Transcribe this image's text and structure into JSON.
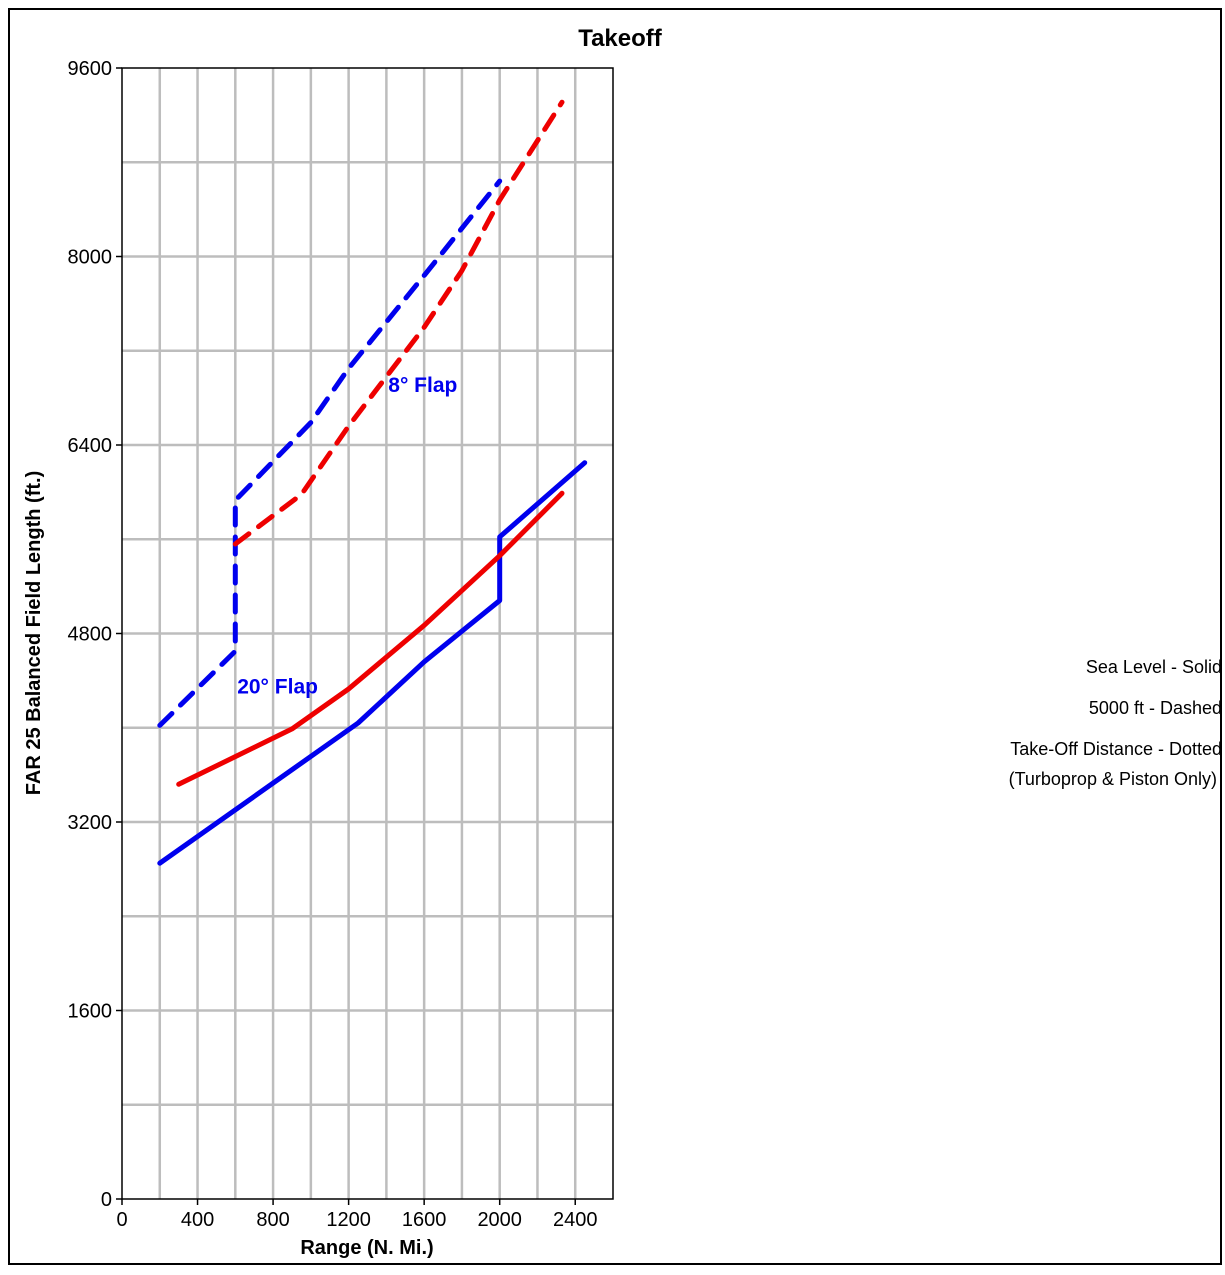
{
  "chart_data": {
    "type": "line",
    "title": "Takeoff",
    "xlabel": "Range (N. Mi.)",
    "ylabel": "FAR 25 Balanced Field Length (ft.)",
    "xlim": [
      0,
      2600
    ],
    "ylim": [
      0,
      9600
    ],
    "xticks": [
      0,
      400,
      800,
      1200,
      1600,
      2000,
      2400
    ],
    "yticks": [
      0,
      1600,
      3200,
      4800,
      6400,
      8000,
      9600
    ],
    "x_grid_step": 200,
    "y_grid_step": 800,
    "grid": true,
    "series": [
      {
        "color": "#0000ee",
        "style": "solid",
        "points": [
          [
            200,
            2850
          ],
          [
            800,
            3530
          ],
          [
            1250,
            4040
          ],
          [
            1600,
            4560
          ],
          [
            2000,
            5080
          ],
          [
            2000,
            5620
          ],
          [
            2450,
            6250
          ]
        ]
      },
      {
        "color": "#ee0000",
        "style": "solid",
        "points": [
          [
            300,
            3520
          ],
          [
            900,
            3990
          ],
          [
            1200,
            4330
          ],
          [
            1600,
            4870
          ],
          [
            2000,
            5460
          ],
          [
            2330,
            5990
          ]
        ]
      },
      {
        "color": "#0000ee",
        "style": "dashed",
        "points": [
          [
            200,
            4020
          ],
          [
            600,
            4650
          ],
          [
            600,
            5930
          ],
          [
            1000,
            6590
          ],
          [
            1200,
            7050
          ],
          [
            1600,
            7840
          ],
          [
            2000,
            8640
          ]
        ]
      },
      {
        "color": "#ee0000",
        "style": "dashed",
        "points": [
          [
            600,
            5560
          ],
          [
            950,
            5980
          ],
          [
            1200,
            6560
          ],
          [
            1600,
            7400
          ],
          [
            1800,
            7880
          ],
          [
            2000,
            8480
          ],
          [
            2330,
            9310
          ]
        ]
      }
    ],
    "annotations": [
      {
        "text": "8° Flap",
        "x": 1410,
        "y": 6850,
        "color": "#0000ee"
      },
      {
        "text": "20° Flap",
        "x": 610,
        "y": 4290,
        "color": "#0000ee"
      }
    ],
    "legend_notes": [
      "Sea Level - Solid",
      "5000 ft - Dashed",
      "Take-Off Distance - Dotted",
      "(Turboprop & Piston Only)"
    ],
    "legend_position": "right"
  }
}
